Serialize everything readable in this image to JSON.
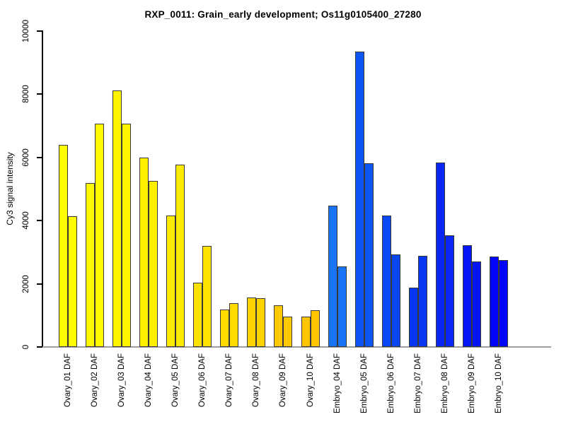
{
  "figure": {
    "background": "#ffffff",
    "axis_color": "#000000",
    "baseline_color": "#9e9e9e",
    "bar_border_color": "#3a3a3a"
  },
  "chart_data": {
    "type": "bar",
    "title": "RXP_0011: Grain_early development; Os11g0105400_27280",
    "xlabel": "",
    "ylabel": "Cy3 signal intensity",
    "ylim": [
      0,
      10000
    ],
    "yticks": [
      0,
      2000,
      4000,
      6000,
      8000,
      10000
    ],
    "grid": false,
    "legend": "none",
    "bars_per_group": 2,
    "categories": [
      "Ovary_01 DAF",
      "Ovary_02 DAF",
      "Ovary_03 DAF",
      "Ovary_04 DAF",
      "Ovary_05 DAF",
      "Ovary_06 DAF",
      "Ovary_07 DAF",
      "Ovary_08 DAF",
      "Ovary_09 DAF",
      "Ovary_10 DAF",
      "Embryo_04 DAF",
      "Embryo_05 DAF",
      "Embryo_06 DAF",
      "Embryo_07 DAF",
      "Embryo_08 DAF",
      "Embryo_09 DAF",
      "Embryo_10 DAF"
    ],
    "groups": [
      {
        "label": "Ovary_01 DAF",
        "color": "#FFFF00",
        "values": [
          6390,
          4130
        ]
      },
      {
        "label": "Ovary_02 DAF",
        "color": "#FFFA00",
        "values": [
          5200,
          7060
        ]
      },
      {
        "label": "Ovary_03 DAF",
        "color": "#FFF500",
        "values": [
          8120,
          7060
        ]
      },
      {
        "label": "Ovary_04 DAF",
        "color": "#FFF000",
        "values": [
          6000,
          5250
        ]
      },
      {
        "label": "Ovary_05 DAF",
        "color": "#FFEB00",
        "values": [
          4150,
          5770
        ]
      },
      {
        "label": "Ovary_06 DAF",
        "color": "#FFE300",
        "values": [
          2040,
          3190
        ]
      },
      {
        "label": "Ovary_07 DAF",
        "color": "#FFDB00",
        "values": [
          1190,
          1390
        ]
      },
      {
        "label": "Ovary_08 DAF",
        "color": "#FFD300",
        "values": [
          1570,
          1540
        ]
      },
      {
        "label": "Ovary_09 DAF",
        "color": "#FFCB00",
        "values": [
          1310,
          960
        ]
      },
      {
        "label": "Ovary_10 DAF",
        "color": "#FFC500",
        "values": [
          970,
          1160
        ]
      },
      {
        "label": "Embryo_04 DAF",
        "color": "#1874F5",
        "values": [
          4470,
          2560
        ]
      },
      {
        "label": "Embryo_05 DAF",
        "color": "#0D55F2",
        "values": [
          9360,
          5810
        ]
      },
      {
        "label": "Embryo_06 DAF",
        "color": "#0B46F3",
        "values": [
          4170,
          2930
        ]
      },
      {
        "label": "Embryo_07 DAF",
        "color": "#0936F3",
        "values": [
          1890,
          2880
        ]
      },
      {
        "label": "Embryo_08 DAF",
        "color": "#0827F3",
        "values": [
          5830,
          3530
        ]
      },
      {
        "label": "Embryo_09 DAF",
        "color": "#0515F4",
        "values": [
          3230,
          2710
        ]
      },
      {
        "label": "Embryo_10 DAF",
        "color": "#0306F6",
        "values": [
          2860,
          2750
        ]
      }
    ]
  }
}
